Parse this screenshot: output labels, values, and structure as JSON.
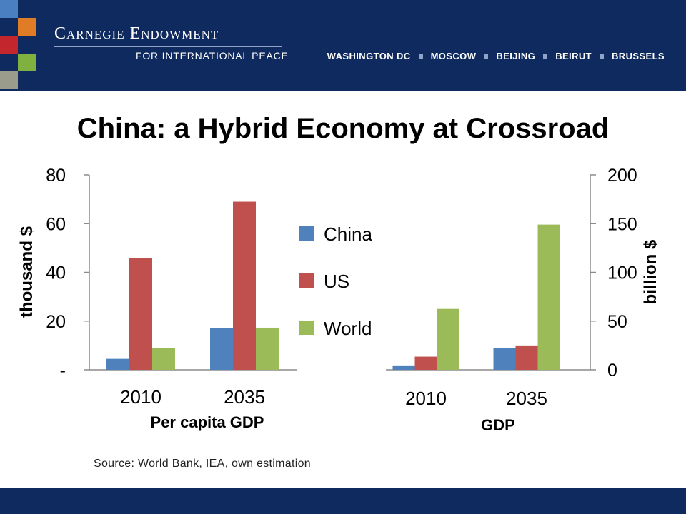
{
  "header": {
    "org_name": "Carnegie Endowment",
    "org_sub": "FOR INTERNATIONAL PEACE",
    "cities": [
      "WASHINGTON DC",
      "MOSCOW",
      "BEIJING",
      "BEIRUT",
      "BRUSSELS"
    ],
    "brand_color": "#0f2a5e",
    "logo_colors": [
      "#4a7fc1",
      "#e07c26",
      "#c4262e",
      "#7fb040",
      "#9c9c8c"
    ]
  },
  "title": "China: a Hybrid Economy at Crossroad",
  "source": "Source: World Bank, IEA, own estimation",
  "legend": {
    "placement": "center",
    "entries": [
      {
        "name": "China",
        "color": "#4f81bd"
      },
      {
        "name": "US",
        "color": "#c0504d"
      },
      {
        "name": "World",
        "color": "#9bbb59"
      }
    ]
  },
  "chart_data": [
    {
      "type": "bar",
      "title": "",
      "xlabel": "Per capita GDP",
      "ylabel": "thousand $",
      "categories": [
        "2010",
        "2035"
      ],
      "ylim": [
        0,
        80
      ],
      "yticks": [
        0,
        20,
        40,
        60,
        80
      ],
      "ytick_labels": [
        "-",
        "20",
        "40",
        "60",
        "80"
      ],
      "axis_side": "left",
      "series": [
        {
          "name": "China",
          "color": "#4f81bd",
          "values": [
            4.5,
            17
          ]
        },
        {
          "name": "US",
          "color": "#c0504d",
          "values": [
            46,
            69
          ]
        },
        {
          "name": "World",
          "color": "#9bbb59",
          "values": [
            9,
            17.3
          ]
        }
      ]
    },
    {
      "type": "bar",
      "title": "",
      "xlabel": "GDP",
      "ylabel": "billion $",
      "categories": [
        "2010",
        "2035"
      ],
      "ylim": [
        0,
        200
      ],
      "yticks": [
        0,
        50,
        100,
        150,
        200
      ],
      "ytick_labels": [
        "0",
        "50",
        "100",
        "150",
        "200"
      ],
      "axis_side": "right",
      "series": [
        {
          "name": "China",
          "color": "#4f81bd",
          "values": [
            4.5,
            22.5
          ]
        },
        {
          "name": "US",
          "color": "#c0504d",
          "values": [
            13.5,
            25
          ]
        },
        {
          "name": "World",
          "color": "#9bbb59",
          "values": [
            62.5,
            149
          ]
        }
      ]
    }
  ]
}
